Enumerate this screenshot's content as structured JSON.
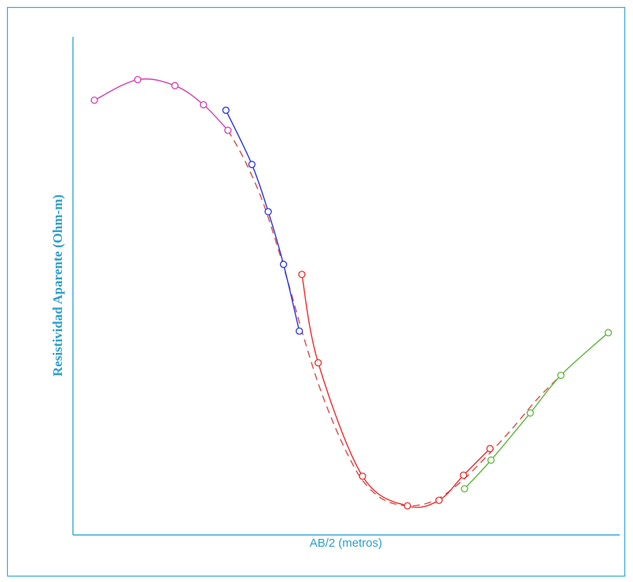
{
  "chart_data": {
    "type": "line",
    "xlabel": "AB/2 (metros)",
    "ylabel": "Resistividad Aparente (Ohm-m)",
    "xlim": [
      0,
      100
    ],
    "ylim": [
      0,
      100
    ],
    "grid": false,
    "legend": "none",
    "axis_color": "#3aa7d6",
    "series": [
      {
        "color": "#d93cb5",
        "dashed": false,
        "x": [
          4.2,
          12.7,
          20.0,
          25.6,
          30.4
        ],
        "y": [
          86.6,
          90.7,
          89.5,
          85.7,
          80.6
        ]
      },
      {
        "color": "#2b35e0",
        "dashed": false,
        "x": [
          30.0,
          35.1,
          38.3,
          41.3,
          44.4
        ],
        "y": [
          84.6,
          73.8,
          64.4,
          53.9,
          40.6
        ]
      },
      {
        "color": "#f02b2b",
        "dashed": false,
        "x": [
          44.9,
          48.1,
          56.8,
          65.6,
          71.8,
          76.6,
          81.8
        ],
        "y": [
          51.9,
          34.3,
          11.7,
          5.8,
          6.9,
          11.9,
          17.2
        ]
      },
      {
        "color": "#5cb83a",
        "dashed": false,
        "x": [
          76.8,
          82.0,
          89.7,
          95.7,
          105.0
        ],
        "y": [
          9.2,
          14.9,
          24.3,
          31.8,
          40.3
        ]
      },
      {
        "color": "#dd4a4a",
        "dashed": true,
        "x": [
          30.4,
          33.5,
          37.0,
          40.0,
          42.6,
          45.0,
          48.0,
          51.0,
          54.0,
          57.0,
          61.0,
          66.0,
          71.0,
          76.0,
          81.0,
          86.0,
          91.0,
          95.7
        ],
        "y": [
          80.6,
          75.0,
          67.0,
          57.8,
          48.9,
          40.3,
          30.5,
          22.5,
          15.8,
          10.6,
          7.0,
          5.8,
          6.9,
          10.5,
          15.5,
          21.0,
          27.0,
          31.8
        ],
        "markers": false
      }
    ]
  }
}
